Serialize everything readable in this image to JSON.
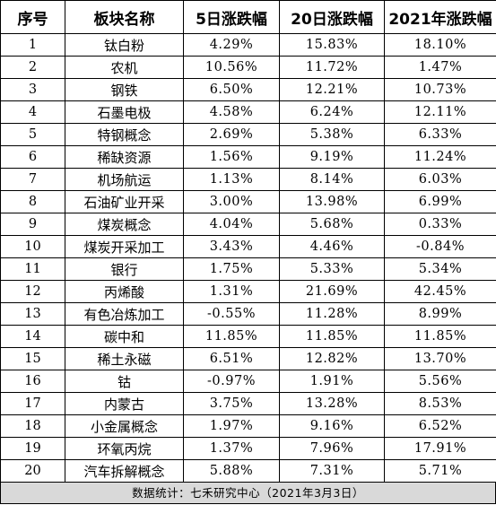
{
  "table": {
    "headers": [
      "序号",
      "板块名称",
      "5日涨跌幅",
      "20日涨跌幅",
      "2021年涨跌幅"
    ],
    "rows": [
      [
        "1",
        "钛白粉",
        "4.29%",
        "15.83%",
        "18.10%"
      ],
      [
        "2",
        "农机",
        "10.56%",
        "11.72%",
        "1.47%"
      ],
      [
        "3",
        "钢铁",
        "6.50%",
        "12.21%",
        "10.73%"
      ],
      [
        "4",
        "石墨电极",
        "4.58%",
        "6.24%",
        "12.11%"
      ],
      [
        "5",
        "特钢概念",
        "2.69%",
        "5.38%",
        "6.33%"
      ],
      [
        "6",
        "稀缺资源",
        "1.56%",
        "9.19%",
        "11.24%"
      ],
      [
        "7",
        "机场航运",
        "1.13%",
        "8.14%",
        "6.03%"
      ],
      [
        "8",
        "石油矿业开采",
        "3.00%",
        "13.98%",
        "6.99%"
      ],
      [
        "9",
        "煤炭概念",
        "4.04%",
        "5.68%",
        "0.33%"
      ],
      [
        "10",
        "煤炭开采加工",
        "3.43%",
        "4.46%",
        "-0.84%"
      ],
      [
        "11",
        "银行",
        "1.75%",
        "5.33%",
        "5.34%"
      ],
      [
        "12",
        "丙烯酸",
        "1.31%",
        "21.69%",
        "42.45%"
      ],
      [
        "13",
        "有色冶炼加工",
        "-0.55%",
        "11.28%",
        "8.99%"
      ],
      [
        "14",
        "碳中和",
        "11.85%",
        "11.85%",
        "11.85%"
      ],
      [
        "15",
        "稀土永磁",
        "6.51%",
        "12.82%",
        "13.70%"
      ],
      [
        "16",
        "钴",
        "-0.97%",
        "1.91%",
        "5.56%"
      ],
      [
        "17",
        "内蒙古",
        "3.75%",
        "13.28%",
        "8.53%"
      ],
      [
        "18",
        "小金属概念",
        "1.97%",
        "9.16%",
        "6.52%"
      ],
      [
        "19",
        "环氧丙烷",
        "1.37%",
        "7.96%",
        "17.91%"
      ],
      [
        "20",
        "汽车拆解概念",
        "5.88%",
        "7.31%",
        "5.71%"
      ]
    ]
  },
  "footer": {
    "text": "数据统计：七禾研究中心（2021年3月3日）"
  },
  "colors": {
    "footer_background": "#d9d9d9",
    "border": "#000000"
  }
}
